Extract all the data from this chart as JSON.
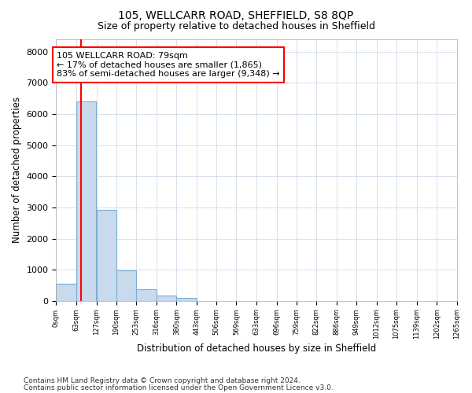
{
  "title": "105, WELLCARR ROAD, SHEFFIELD, S8 8QP",
  "subtitle": "Size of property relative to detached houses in Sheffield",
  "xlabel": "Distribution of detached houses by size in Sheffield",
  "ylabel": "Number of detached properties",
  "property_label": "105 WELLCARR ROAD: 79sqm",
  "annotation_line1": "← 17% of detached houses are smaller (1,865)",
  "annotation_line2": "83% of semi-detached houses are larger (9,348) →",
  "bin_labels": [
    "0sqm",
    "63sqm",
    "127sqm",
    "190sqm",
    "253sqm",
    "316sqm",
    "380sqm",
    "443sqm",
    "506sqm",
    "569sqm",
    "633sqm",
    "696sqm",
    "759sqm",
    "822sqm",
    "886sqm",
    "949sqm",
    "1012sqm",
    "1075sqm",
    "1139sqm",
    "1202sqm",
    "1265sqm"
  ],
  "bin_edges": [
    0,
    63,
    127,
    190,
    253,
    316,
    380,
    443,
    506,
    569,
    633,
    696,
    759,
    822,
    886,
    949,
    1012,
    1075,
    1139,
    1202,
    1265
  ],
  "bar_heights": [
    550,
    6400,
    2920,
    970,
    370,
    160,
    90,
    0,
    0,
    0,
    0,
    0,
    0,
    0,
    0,
    0,
    0,
    0,
    0,
    0
  ],
  "bar_color": "#c8daec",
  "bar_edge_color": "#7aaed4",
  "red_line_x": 79,
  "ylim": [
    0,
    8400
  ],
  "yticks": [
    0,
    1000,
    2000,
    3000,
    4000,
    5000,
    6000,
    7000,
    8000
  ],
  "grid_color": "#d0dce8",
  "bg_color": "#ffffff",
  "footer_line1": "Contains HM Land Registry data © Crown copyright and database right 2024.",
  "footer_line2": "Contains public sector information licensed under the Open Government Licence v3.0."
}
